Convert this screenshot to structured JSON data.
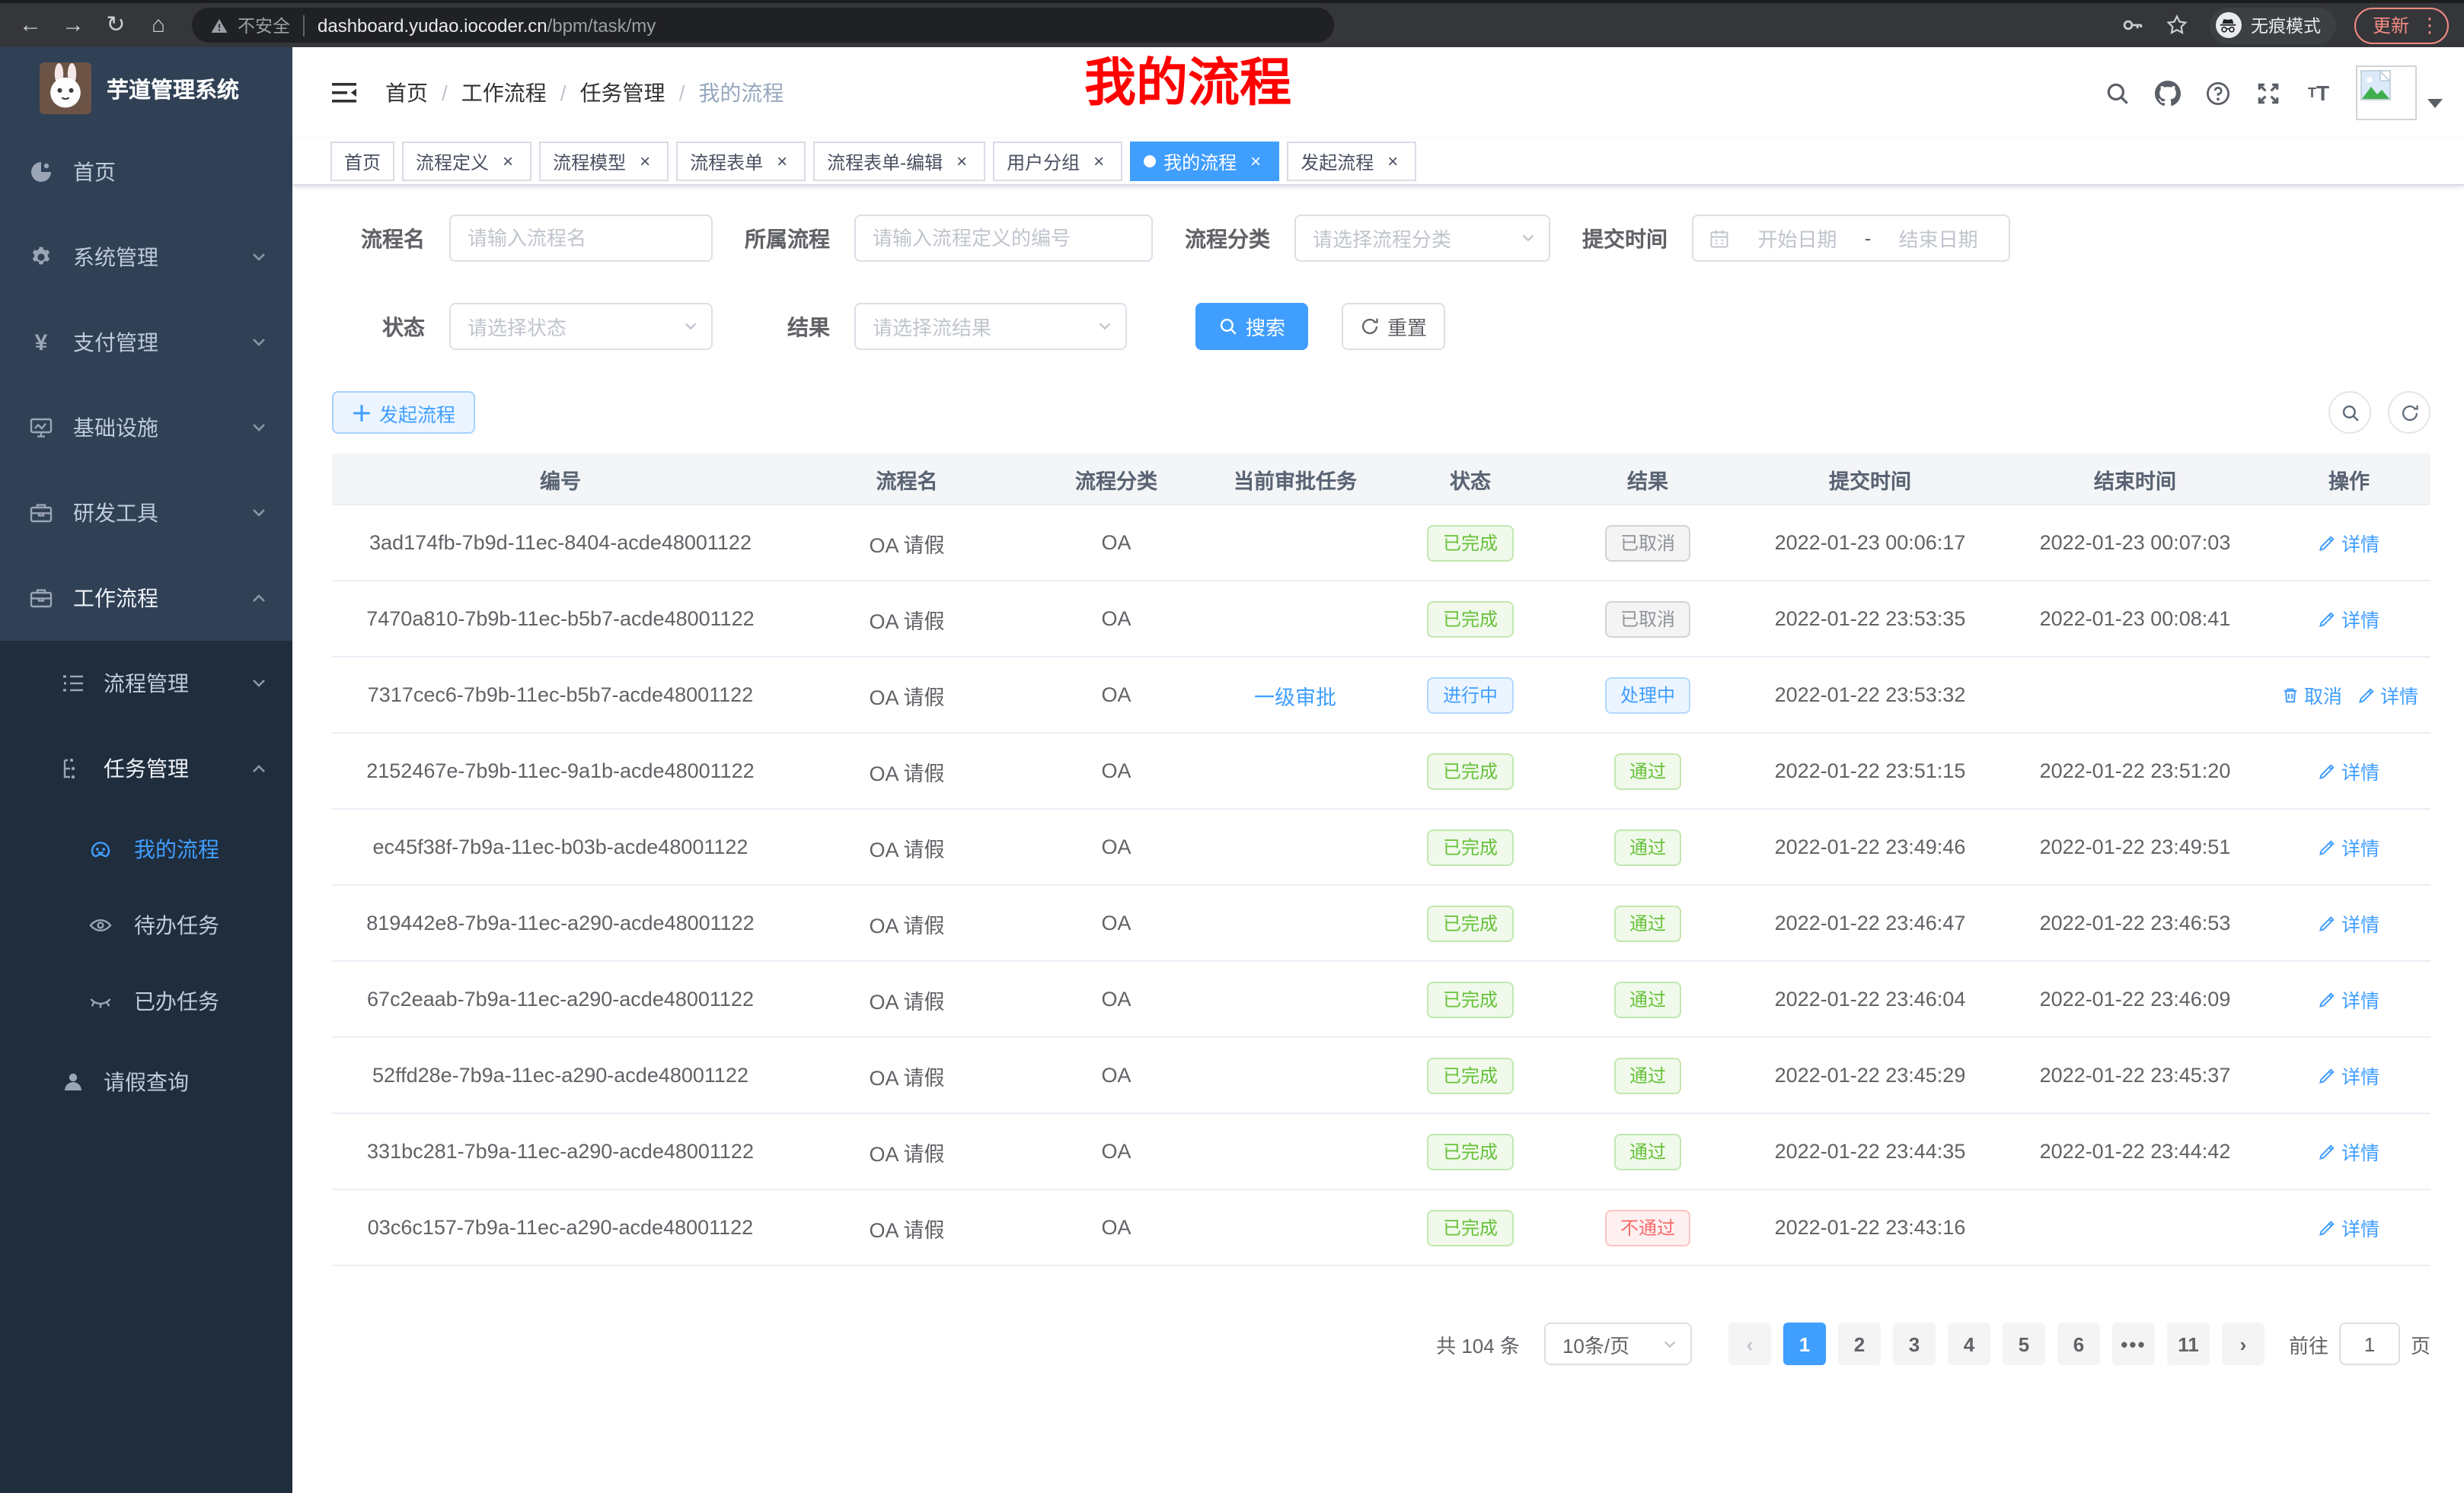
{
  "browser": {
    "nav_icons": [
      "back-icon",
      "forward-icon",
      "reload-icon",
      "home-icon"
    ],
    "security_label": "不安全",
    "url_host": "dashboard.yudao.iocoder.cn",
    "url_path": "/bpm/task/my",
    "incognito_label": "无痕模式",
    "update_label": "更新"
  },
  "sidebar": {
    "title": "芋道管理系统",
    "menu": [
      {
        "label": "首页",
        "icon": "dashboard-icon",
        "level": 1
      },
      {
        "label": "系统管理",
        "icon": "gear-icon",
        "level": 1,
        "chevron": "down"
      },
      {
        "label": "支付管理",
        "icon": "yen-icon",
        "level": 1,
        "chevron": "down"
      },
      {
        "label": "基础设施",
        "icon": "monitor-icon",
        "level": 1,
        "chevron": "down"
      },
      {
        "label": "研发工具",
        "icon": "toolbox-icon",
        "level": 1,
        "chevron": "down"
      },
      {
        "label": "工作流程",
        "icon": "briefcase-icon",
        "level": 1,
        "chevron": "up",
        "open": true
      },
      {
        "label": "流程管理",
        "icon": "list-icon",
        "level": 2,
        "sub": true,
        "chevron": "down"
      },
      {
        "label": "任务管理",
        "icon": "tree-icon",
        "level": 2,
        "sub": true,
        "chevron": "up",
        "open": true
      },
      {
        "label": "我的流程",
        "icon": "face-icon",
        "level": 3,
        "sub": true,
        "active": true
      },
      {
        "label": "待办任务",
        "icon": "eye-icon",
        "level": 3,
        "sub": true
      },
      {
        "label": "已办任务",
        "icon": "eye-closed-icon",
        "level": 3,
        "sub": true
      },
      {
        "label": "请假查询",
        "icon": "user-icon",
        "level": 2,
        "sub": true
      }
    ]
  },
  "header": {
    "breadcrumb": [
      "首页",
      "工作流程",
      "任务管理",
      "我的流程"
    ],
    "right_icons": [
      "search-icon",
      "github-icon",
      "question-icon",
      "fullscreen-icon",
      "fontsize-icon"
    ],
    "annotation": {
      "text": "我的流程",
      "color": "#fe0100"
    }
  },
  "tabs": [
    {
      "label": "首页",
      "closable": false
    },
    {
      "label": "流程定义",
      "closable": true
    },
    {
      "label": "流程模型",
      "closable": true
    },
    {
      "label": "流程表单",
      "closable": true
    },
    {
      "label": "流程表单-编辑",
      "closable": true
    },
    {
      "label": "用户分组",
      "closable": true
    },
    {
      "label": "我的流程",
      "closable": true,
      "active": true
    },
    {
      "label": "发起流程",
      "closable": true
    }
  ],
  "filters": {
    "name_label": "流程名",
    "name_placeholder": "请输入流程名",
    "owner_label": "所属流程",
    "owner_placeholder": "请输入流程定义的编号",
    "category_label": "流程分类",
    "category_placeholder": "请选择流程分类",
    "time_label": "提交时间",
    "time_start_placeholder": "开始日期",
    "time_separator": "-",
    "time_end_placeholder": "结束日期",
    "status_label": "状态",
    "status_placeholder": "请选择状态",
    "result_label": "结果",
    "result_placeholder": "请选择流结果",
    "search_label": "搜索",
    "reset_label": "重置"
  },
  "toolbar": {
    "create_label": "发起流程"
  },
  "table": {
    "columns": [
      "编号",
      "流程名",
      "流程分类",
      "当前审批任务",
      "状态",
      "结果",
      "提交时间",
      "结束时间",
      "操作"
    ],
    "rows": [
      {
        "id": "3ad174fb-7b9d-11ec-8404-acde48001122",
        "name": "OA 请假",
        "category": "OA",
        "task": "",
        "status": "已完成",
        "status_type": "success",
        "result": "已取消",
        "result_type": "info",
        "submit_time": "2022-01-23 00:06:17",
        "end_time": "2022-01-23 00:07:03",
        "actions": [
          "详情"
        ]
      },
      {
        "id": "7470a810-7b9b-11ec-b5b7-acde48001122",
        "name": "OA 请假",
        "category": "OA",
        "task": "",
        "status": "已完成",
        "status_type": "success",
        "result": "已取消",
        "result_type": "info",
        "submit_time": "2022-01-22 23:53:35",
        "end_time": "2022-01-23 00:08:41",
        "actions": [
          "详情"
        ]
      },
      {
        "id": "7317cec6-7b9b-11ec-b5b7-acde48001122",
        "name": "OA 请假",
        "category": "OA",
        "task": "一级审批",
        "status": "进行中",
        "status_type": "primary",
        "result": "处理中",
        "result_type": "primary",
        "submit_time": "2022-01-22 23:53:32",
        "end_time": "",
        "actions": [
          "取消",
          "详情"
        ]
      },
      {
        "id": "2152467e-7b9b-11ec-9a1b-acde48001122",
        "name": "OA 请假",
        "category": "OA",
        "task": "",
        "status": "已完成",
        "status_type": "success",
        "result": "通过",
        "result_type": "success",
        "submit_time": "2022-01-22 23:51:15",
        "end_time": "2022-01-22 23:51:20",
        "actions": [
          "详情"
        ]
      },
      {
        "id": "ec45f38f-7b9a-11ec-b03b-acde48001122",
        "name": "OA 请假",
        "category": "OA",
        "task": "",
        "status": "已完成",
        "status_type": "success",
        "result": "通过",
        "result_type": "success",
        "submit_time": "2022-01-22 23:49:46",
        "end_time": "2022-01-22 23:49:51",
        "actions": [
          "详情"
        ]
      },
      {
        "id": "819442e8-7b9a-11ec-a290-acde48001122",
        "name": "OA 请假",
        "category": "OA",
        "task": "",
        "status": "已完成",
        "status_type": "success",
        "result": "通过",
        "result_type": "success",
        "submit_time": "2022-01-22 23:46:47",
        "end_time": "2022-01-22 23:46:53",
        "actions": [
          "详情"
        ]
      },
      {
        "id": "67c2eaab-7b9a-11ec-a290-acde48001122",
        "name": "OA 请假",
        "category": "OA",
        "task": "",
        "status": "已完成",
        "status_type": "success",
        "result": "通过",
        "result_type": "success",
        "submit_time": "2022-01-22 23:46:04",
        "end_time": "2022-01-22 23:46:09",
        "actions": [
          "详情"
        ]
      },
      {
        "id": "52ffd28e-7b9a-11ec-a290-acde48001122",
        "name": "OA 请假",
        "category": "OA",
        "task": "",
        "status": "已完成",
        "status_type": "success",
        "result": "通过",
        "result_type": "success",
        "submit_time": "2022-01-22 23:45:29",
        "end_time": "2022-01-22 23:45:37",
        "actions": [
          "详情"
        ]
      },
      {
        "id": "331bc281-7b9a-11ec-a290-acde48001122",
        "name": "OA 请假",
        "category": "OA",
        "task": "",
        "status": "已完成",
        "status_type": "success",
        "result": "通过",
        "result_type": "success",
        "submit_time": "2022-01-22 23:44:35",
        "end_time": "2022-01-22 23:44:42",
        "actions": [
          "详情"
        ]
      },
      {
        "id": "03c6c157-7b9a-11ec-a290-acde48001122",
        "name": "OA 请假",
        "category": "OA",
        "task": "",
        "status": "已完成",
        "status_type": "success",
        "result": "不通过",
        "result_type": "danger",
        "submit_time": "2022-01-22 23:43:16",
        "end_time": "",
        "actions": [
          "详情"
        ]
      }
    ]
  },
  "pagination": {
    "total": "共 104 条",
    "page_size": "10条/页",
    "pages": [
      "1",
      "2",
      "3",
      "4",
      "5",
      "6",
      "•••",
      "11"
    ],
    "active": "1",
    "goto_label": "前往",
    "goto_value": "1",
    "goto_unit": "页"
  },
  "colors": {
    "accent": "#409eff",
    "success": "#67c23a",
    "info": "#909399",
    "danger": "#f56c6c",
    "sidebar_bg": "#304156",
    "submenu_bg": "#1f2d3d",
    "annotation": "#fe0100"
  }
}
